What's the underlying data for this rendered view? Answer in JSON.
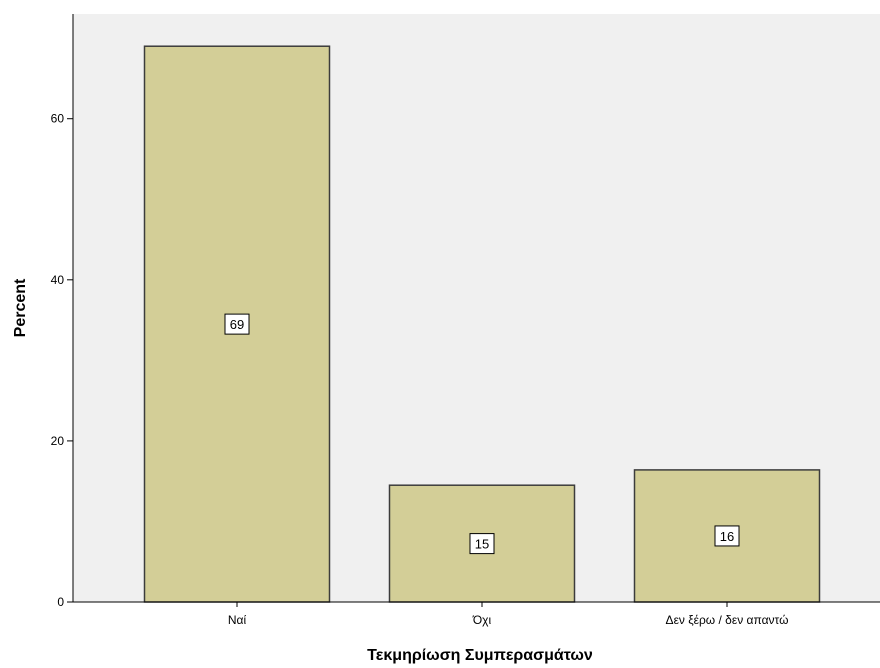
{
  "chart_data": {
    "type": "bar",
    "categories": [
      "Ναί",
      "Όχι",
      "Δεν ξέρω / δεν απαντώ"
    ],
    "values": [
      69,
      14.5,
      16.4
    ],
    "data_labels": [
      "69",
      "15",
      "16"
    ],
    "xlabel": "Τεκμηρίωση Συμπερασμάτων",
    "ylabel": "Percent",
    "ylim": [
      0,
      73
    ],
    "yticks": [
      0,
      20,
      40,
      60
    ],
    "grid": false,
    "colors": {
      "plot_background": "#f0f0f0",
      "bar_fill": "#d3ce97",
      "bar_stroke": "#3c3c3c",
      "axis": "#000000",
      "label_box": "#ffffff"
    }
  }
}
